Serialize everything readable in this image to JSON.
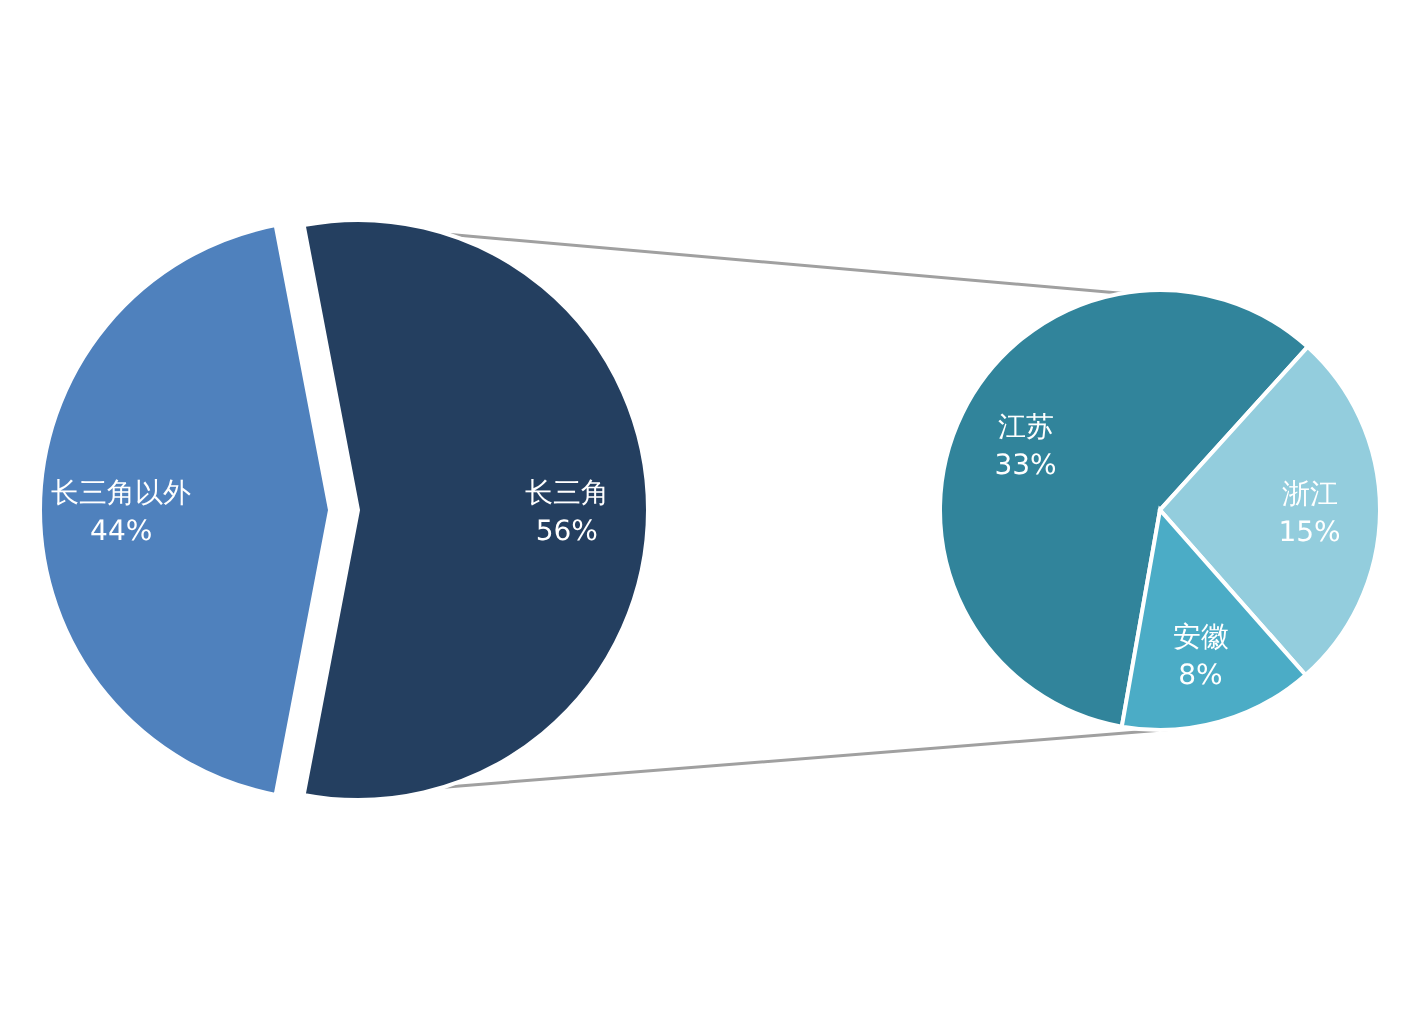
{
  "chart_data": [
    {
      "type": "pie",
      "categories": [
        "长三角以外",
        "长三角"
      ],
      "values": [
        44,
        56
      ],
      "colors": [
        "#4f81bd",
        "#243f60"
      ],
      "value_labels": [
        "44%",
        "56%"
      ]
    },
    {
      "type": "pie",
      "categories": [
        "江苏",
        "浙江",
        "安徽"
      ],
      "values": [
        33,
        15,
        8
      ],
      "colors": [
        "#31849b",
        "#93cddd",
        "#4bacc6"
      ],
      "value_labels": [
        "33%",
        "15%",
        "8%"
      ]
    }
  ]
}
